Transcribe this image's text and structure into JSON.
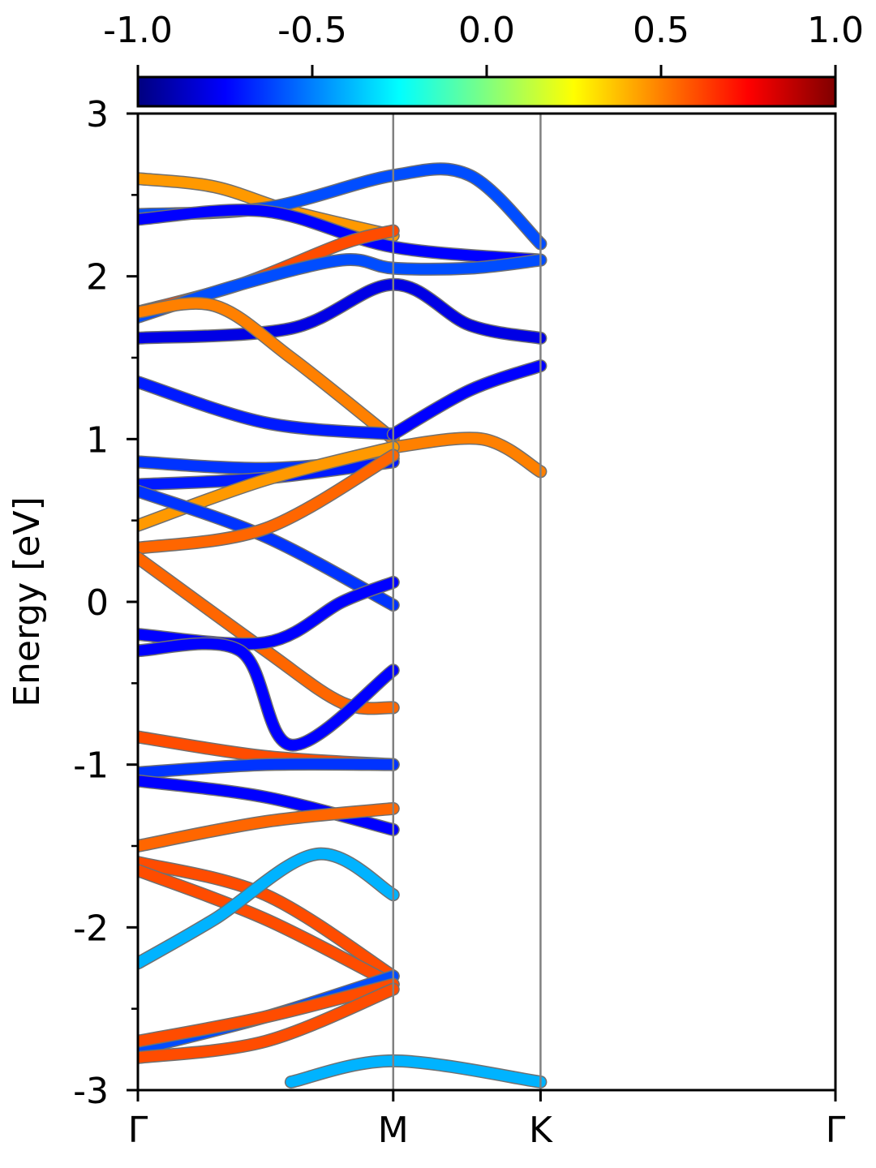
{
  "chart_data": {
    "type": "line",
    "ylabel": "Energy [eV]",
    "ylim": [
      -3,
      3
    ],
    "y_ticks": [
      "3",
      "2",
      "1",
      "0",
      "-1",
      "-2",
      "-3"
    ],
    "x_ticks": [
      "Γ",
      "M",
      "K",
      "Γ"
    ],
    "x_tick_positions": [
      0,
      1,
      1.577,
      2.732
    ],
    "vertical_lines_at": [
      "M",
      "K"
    ],
    "grid": false,
    "colorbar": {
      "colormap": "jet",
      "range": [
        -1.0,
        1.0
      ],
      "ticks": [
        "-1.0",
        "-0.5",
        "0.0",
        "0.5",
        "1.0"
      ],
      "placement": "top"
    },
    "line_color_encoding": "spin/orbital projection mapped to jet colormap",
    "series": [
      {
        "c": 0.45,
        "x": [
          0,
          0.3,
          0.6,
          1.0
        ],
        "y": [
          2.6,
          2.55,
          2.4,
          2.25
        ]
      },
      {
        "c": -0.6,
        "x": [
          0,
          0.5,
          1.0,
          1.3,
          1.577
        ],
        "y": [
          2.38,
          2.42,
          2.62,
          2.62,
          2.2
        ]
      },
      {
        "c": -0.75,
        "x": [
          0,
          0.5,
          1.0,
          1.577
        ],
        "y": [
          2.35,
          2.4,
          2.18,
          2.1
        ]
      },
      {
        "c": 0.6,
        "x": [
          0,
          0.4,
          0.8,
          1.0
        ],
        "y": [
          1.78,
          1.95,
          2.2,
          2.28
        ]
      },
      {
        "c": -0.6,
        "x": [
          0,
          0.4,
          0.8,
          1.0,
          1.3,
          1.577
        ],
        "y": [
          1.75,
          1.95,
          2.1,
          2.05,
          2.05,
          2.1
        ]
      },
      {
        "c": -0.8,
        "x": [
          0,
          0.6,
          1.0,
          1.3,
          1.577
        ],
        "y": [
          1.62,
          1.68,
          1.95,
          1.7,
          1.62
        ]
      },
      {
        "c": 0.5,
        "x": [
          0,
          0.3,
          0.6,
          1.0
        ],
        "y": [
          1.78,
          1.82,
          1.5,
          1.0
        ]
      },
      {
        "c": -0.7,
        "x": [
          0,
          0.5,
          1.0
        ],
        "y": [
          1.35,
          1.1,
          1.03
        ]
      },
      {
        "c": -0.75,
        "x": [
          1.0,
          1.3,
          1.577
        ],
        "y": [
          1.03,
          1.3,
          1.45
        ]
      },
      {
        "c": 0.5,
        "x": [
          1.0,
          1.35,
          1.577
        ],
        "y": [
          0.95,
          1.0,
          0.8
        ]
      },
      {
        "c": -0.65,
        "x": [
          0,
          0.5,
          1.0
        ],
        "y": [
          0.86,
          0.82,
          0.88
        ]
      },
      {
        "c": -0.7,
        "x": [
          0,
          0.5,
          1.0
        ],
        "y": [
          0.72,
          0.76,
          0.86
        ]
      },
      {
        "c": 0.45,
        "x": [
          0,
          0.5,
          1.0
        ],
        "y": [
          0.47,
          0.75,
          0.95
        ]
      },
      {
        "c": -0.65,
        "x": [
          0,
          0.5,
          1.0
        ],
        "y": [
          0.68,
          0.4,
          -0.02
        ]
      },
      {
        "c": 0.55,
        "x": [
          0,
          0.5,
          1.0
        ],
        "y": [
          0.33,
          0.45,
          0.9
        ]
      },
      {
        "c": 0.55,
        "x": [
          0,
          0.5,
          0.8,
          1.0
        ],
        "y": [
          0.27,
          -0.3,
          -0.62,
          -0.65
        ]
      },
      {
        "c": -0.75,
        "x": [
          0,
          0.5,
          0.8,
          1.0
        ],
        "y": [
          -0.2,
          -0.25,
          0.0,
          0.12
        ]
      },
      {
        "c": -0.75,
        "x": [
          0,
          0.4,
          0.6,
          1.0
        ],
        "y": [
          -0.3,
          -0.3,
          -0.88,
          -0.42
        ]
      },
      {
        "c": 0.6,
        "x": [
          0,
          0.5,
          1.0
        ],
        "y": [
          -0.83,
          -0.95,
          -1.0
        ]
      },
      {
        "c": -0.65,
        "x": [
          0,
          0.5,
          1.0
        ],
        "y": [
          -1.05,
          -1.0,
          -1.0
        ]
      },
      {
        "c": -0.75,
        "x": [
          0,
          0.5,
          1.0
        ],
        "y": [
          -1.1,
          -1.2,
          -1.4
        ]
      },
      {
        "c": 0.55,
        "x": [
          0,
          0.5,
          1.0
        ],
        "y": [
          -1.5,
          -1.35,
          -1.27
        ]
      },
      {
        "c": 0.6,
        "x": [
          0,
          0.5,
          1.0
        ],
        "y": [
          -1.6,
          -1.8,
          -2.3
        ]
      },
      {
        "c": 0.6,
        "x": [
          0,
          0.5,
          1.0
        ],
        "y": [
          -1.65,
          -1.95,
          -2.35
        ]
      },
      {
        "c": -0.4,
        "x": [
          0,
          0.3,
          0.7,
          1.0
        ],
        "y": [
          -2.22,
          -1.95,
          -1.55,
          -1.8
        ]
      },
      {
        "c": -0.6,
        "x": [
          0,
          0.5,
          1.0
        ],
        "y": [
          -2.75,
          -2.55,
          -2.3
        ]
      },
      {
        "c": 0.6,
        "x": [
          0,
          0.5,
          1.0
        ],
        "y": [
          -2.7,
          -2.55,
          -2.35
        ]
      },
      {
        "c": 0.6,
        "x": [
          0,
          0.5,
          1.0
        ],
        "y": [
          -2.8,
          -2.7,
          -2.38
        ]
      },
      {
        "c": -0.4,
        "x": [
          0.6,
          1.0,
          1.577
        ],
        "y": [
          -2.95,
          -2.82,
          -2.95
        ]
      }
    ]
  }
}
